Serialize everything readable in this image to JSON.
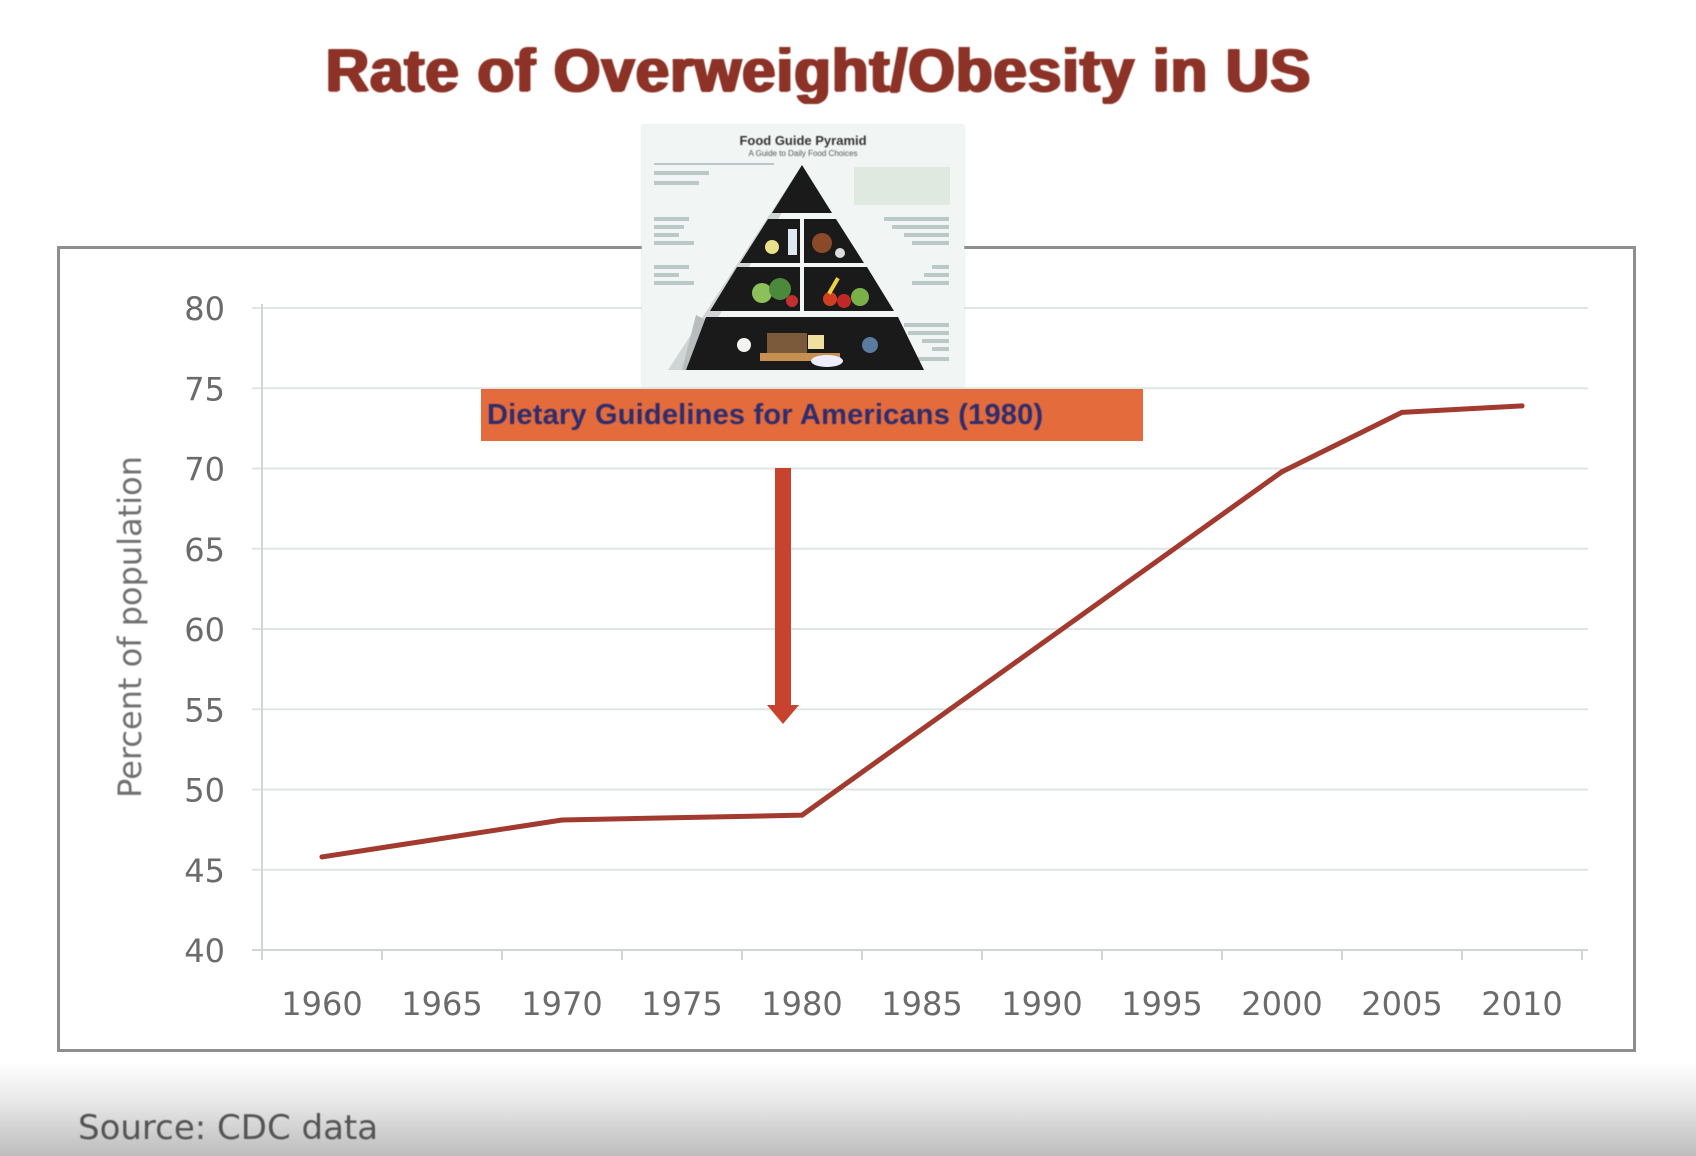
{
  "slide": {
    "title": "Rate of Overweight/Obesity in US",
    "source": "Source: CDC data"
  },
  "image_inset": {
    "title": "Food Guide Pyramid",
    "subtitle": "A Guide to Daily Food Choices"
  },
  "annotation": {
    "label": "Dietary Guidelines for Americans (1980)",
    "label_bg_color": "#e46b3c",
    "label_text_color": "#2d2d6e",
    "arrow_color": "#c8432e",
    "points_to_year": 1980
  },
  "chart_data": {
    "type": "line",
    "title": "Rate of Overweight/Obesity in US",
    "xlabel": "",
    "ylabel": "Percent of population",
    "x_tick_labels": [
      "1960",
      "1965",
      "1970",
      "1975",
      "1980",
      "1985",
      "1990",
      "1995",
      "2000",
      "2005",
      "2010"
    ],
    "y_tick_labels": [
      "40",
      "45",
      "50",
      "55",
      "60",
      "65",
      "70",
      "75",
      "80"
    ],
    "ylim": [
      40,
      80
    ],
    "xlim": [
      1960,
      2010
    ],
    "grid": true,
    "legend": "none",
    "series": [
      {
        "name": "Overweight/Obesity",
        "color": "#a23a2f",
        "x": [
          1960,
          1970,
          1980,
          2000,
          2005,
          2010
        ],
        "values": [
          45.8,
          48.1,
          48.4,
          69.8,
          73.5,
          73.9
        ]
      }
    ]
  }
}
